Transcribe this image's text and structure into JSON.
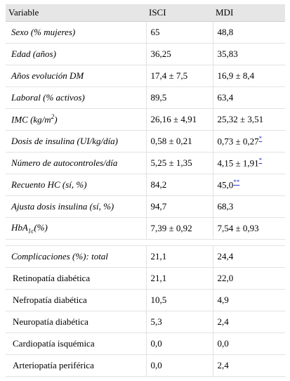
{
  "headers": [
    "Variable",
    "ISCI",
    "MDI"
  ],
  "rows": [
    {
      "label": "Sexo (% mujeres)",
      "isci": "65",
      "mdi": "48,8"
    },
    {
      "label": "Edad (años)",
      "isci": "36,25",
      "mdi": "35,83"
    },
    {
      "label": "Años evolución DM",
      "isci": "17,4 ± 7,5",
      "mdi": "16,9 ± 8,4"
    },
    {
      "label": "Laboral (% activos)",
      "isci": "89,5",
      "mdi": "63,4"
    },
    {
      "label": "IMC (kg/m",
      "label_sup": "2",
      "label_after": ")",
      "isci": "26,16 ± 4,91",
      "mdi": "25,32 ± 3,51"
    },
    {
      "label": "Dosis de insulina (UI/kg/día)",
      "isci": "0,58 ± 0,21",
      "mdi": "0,73 ± 0,27",
      "mdi_note": "*"
    },
    {
      "label": "Número de autocontroles/día",
      "isci": "5,25 ± 1,35",
      "mdi": "4,15 ± 1,91",
      "mdi_note": "*"
    },
    {
      "label": "Recuento HC (sí, %)",
      "isci": "84,2",
      "mdi": "45,0",
      "mdi_note": "**"
    },
    {
      "label": "Ajusta dosis insulina (sí, %)",
      "isci": "94,7",
      "mdi": "68,3"
    },
    {
      "label": "HbA",
      "label_sub": "1c",
      "label_after": "(%)",
      "isci": "7,39 ± 0,92",
      "mdi": "7,54 ± 0,93"
    }
  ],
  "complications": [
    {
      "label": "Complicaciones (%): total",
      "isci": "21,1",
      "mdi": "24,4"
    },
    {
      "label": "Retinopatía diabética",
      "isci": "21,1",
      "mdi": "22,0"
    },
    {
      "label": "Nefropatía diabética",
      "isci": "10,5",
      "mdi": "4,9"
    },
    {
      "label": "Neuropatía diabética",
      "isci": "5,3",
      "mdi": "2,4"
    },
    {
      "label": "Cardiopatía isquémica",
      "isci": "0,0",
      "mdi": "0,0"
    },
    {
      "label": "Arteriopatía periférica",
      "isci": "0,0",
      "mdi": "2,4"
    }
  ]
}
